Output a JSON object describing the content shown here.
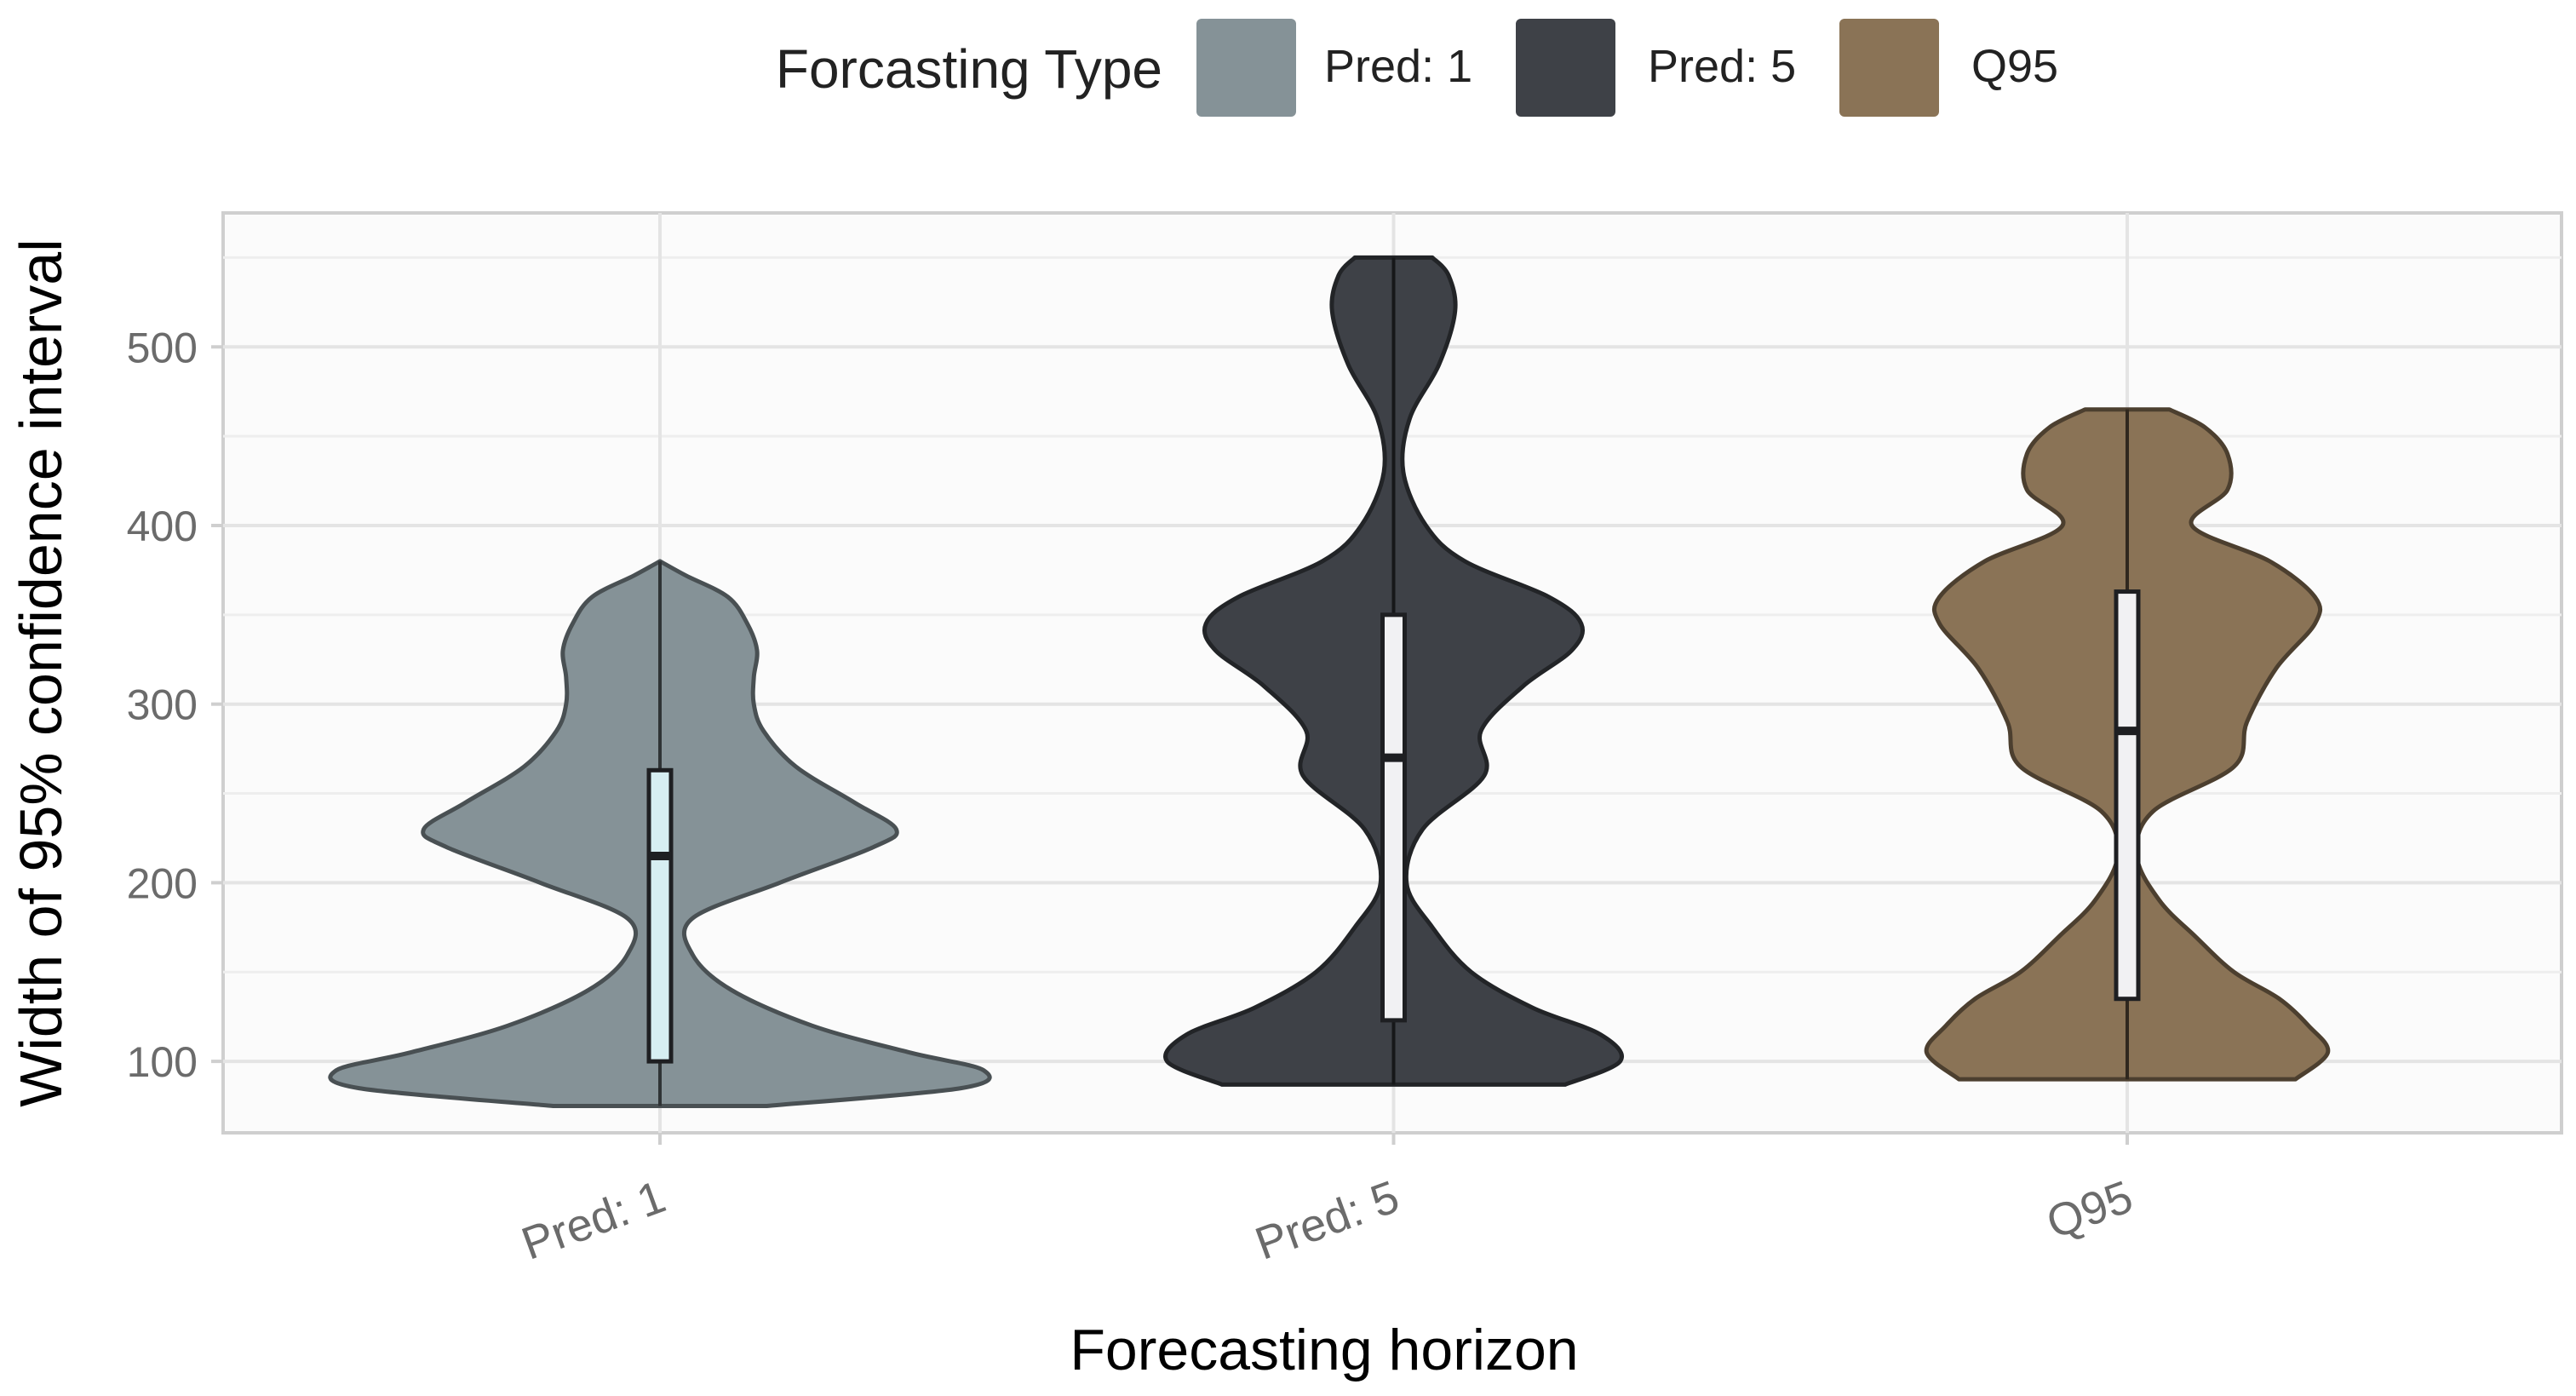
{
  "chart_data": {
    "type": "violin",
    "title": "",
    "xlabel": "Forecasting horizon",
    "ylabel": "Width of 95% confidence interval",
    "categories": [
      "Pred: 1",
      "Pred: 5",
      "Q95"
    ],
    "ylim": [
      60,
      575
    ],
    "yticks": [
      100,
      200,
      300,
      400,
      500
    ],
    "grid": true,
    "legend": {
      "title": "Forcasting Type",
      "position": "top",
      "entries": [
        {
          "label": "Pred: 1",
          "color": "#859297"
        },
        {
          "label": "Pred: 5",
          "color": "#3e4147"
        },
        {
          "label": "Q95",
          "color": "#8a7356"
        }
      ]
    },
    "series": [
      {
        "name": "Pred: 1",
        "color": "#859297",
        "min": 75,
        "max": 380,
        "box": {
          "q1": 100,
          "median": 215,
          "q3": 263
        },
        "density": [
          [
            75,
            0.33
          ],
          [
            85,
            0.93
          ],
          [
            95,
            1.0
          ],
          [
            105,
            0.77
          ],
          [
            120,
            0.47
          ],
          [
            140,
            0.22
          ],
          [
            160,
            0.1
          ],
          [
            180,
            0.1
          ],
          [
            200,
            0.37
          ],
          [
            220,
            0.66
          ],
          [
            230,
            0.73
          ],
          [
            245,
            0.6
          ],
          [
            265,
            0.42
          ],
          [
            285,
            0.32
          ],
          [
            300,
            0.29
          ],
          [
            315,
            0.29
          ],
          [
            330,
            0.3
          ],
          [
            345,
            0.27
          ],
          [
            360,
            0.21
          ],
          [
            372,
            0.08
          ],
          [
            380,
            0.0
          ]
        ]
      },
      {
        "name": "Pred: 5",
        "color": "#3e4147",
        "min": 87,
        "max": 550,
        "box": {
          "q1": 123,
          "median": 270,
          "q3": 350
        },
        "density": [
          [
            87,
            0.53
          ],
          [
            100,
            0.7
          ],
          [
            115,
            0.64
          ],
          [
            130,
            0.43
          ],
          [
            150,
            0.24
          ],
          [
            175,
            0.12
          ],
          [
            200,
            0.04
          ],
          [
            230,
            0.09
          ],
          [
            260,
            0.28
          ],
          [
            285,
            0.27
          ],
          [
            310,
            0.4
          ],
          [
            330,
            0.55
          ],
          [
            345,
            0.58
          ],
          [
            360,
            0.48
          ],
          [
            380,
            0.22
          ],
          [
            400,
            0.1
          ],
          [
            430,
            0.03
          ],
          [
            460,
            0.05
          ],
          [
            490,
            0.14
          ],
          [
            520,
            0.19
          ],
          [
            540,
            0.17
          ],
          [
            550,
            0.12
          ]
        ]
      },
      {
        "name": "Q95",
        "color": "#8a7356",
        "min": 90,
        "max": 465,
        "box": {
          "q1": 135,
          "median": 285,
          "q3": 363
        },
        "density": [
          [
            90,
            0.52
          ],
          [
            105,
            0.62
          ],
          [
            120,
            0.56
          ],
          [
            135,
            0.47
          ],
          [
            150,
            0.33
          ],
          [
            170,
            0.21
          ],
          [
            190,
            0.1
          ],
          [
            215,
            0.03
          ],
          [
            240,
            0.08
          ],
          [
            265,
            0.33
          ],
          [
            290,
            0.37
          ],
          [
            320,
            0.46
          ],
          [
            345,
            0.58
          ],
          [
            360,
            0.58
          ],
          [
            380,
            0.44
          ],
          [
            400,
            0.2
          ],
          [
            420,
            0.31
          ],
          [
            440,
            0.31
          ],
          [
            455,
            0.24
          ],
          [
            465,
            0.13
          ]
        ]
      }
    ]
  }
}
